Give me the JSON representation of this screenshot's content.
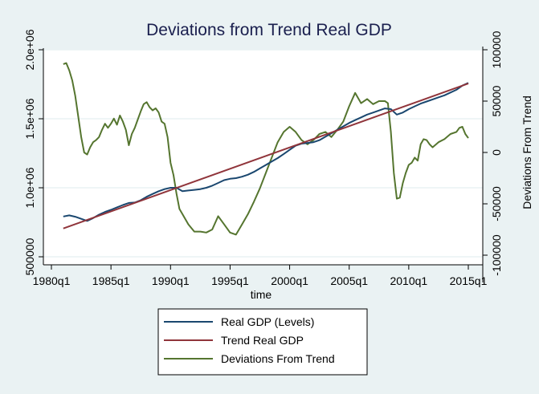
{
  "chart_data": {
    "type": "line",
    "title": "Deviations from Trend Real GDP",
    "xlabel": "time",
    "ylabel_left": "",
    "ylabel_right": "Deviations From Trend",
    "x_ticks": [
      "1980q1",
      "1985q1",
      "1990q1",
      "1995q1",
      "2000q1",
      "2005q1",
      "2010q1",
      "2015q1"
    ],
    "x_tick_values": [
      1980,
      1985,
      1990,
      1995,
      2000,
      2005,
      2010,
      2015
    ],
    "xlim": [
      1979.3,
      2016.2
    ],
    "y_left_ticks": [
      "500000",
      "1.0e+06",
      "1.5e+06",
      "2.0e+06"
    ],
    "y_left_tick_values": [
      500000,
      1000000,
      1500000,
      2000000
    ],
    "ylim_left": [
      450000,
      2000000
    ],
    "y_right_ticks": [
      "-100000",
      "-50000",
      "0",
      "50000",
      "100000"
    ],
    "y_right_tick_values": [
      -100000,
      -50000,
      0,
      50000,
      100000
    ],
    "ylim_right": [
      -110000,
      110000
    ],
    "grid": true,
    "legend_position": "bottom",
    "series": [
      {
        "name": "Real GDP (Levels)",
        "color": "#1a476f",
        "axis": "left",
        "x": [
          1981,
          1981.5,
          1982,
          1982.5,
          1983,
          1983.5,
          1984,
          1984.5,
          1985,
          1985.5,
          1986,
          1986.5,
          1987,
          1987.5,
          1988,
          1988.5,
          1989,
          1989.5,
          1990,
          1990.5,
          1991,
          1991.5,
          1992,
          1992.5,
          1993,
          1993.5,
          1994,
          1994.5,
          1995,
          1995.5,
          1996,
          1996.5,
          1997,
          1997.5,
          1998,
          1998.5,
          1999,
          1999.5,
          2000,
          2000.5,
          2001,
          2001.5,
          2002,
          2002.5,
          2003,
          2003.5,
          2004,
          2004.5,
          2005,
          2005.5,
          2006,
          2006.5,
          2007,
          2007.5,
          2008,
          2008.5,
          2009,
          2009.5,
          2010,
          2010.5,
          2011,
          2011.5,
          2012,
          2012.5,
          2013,
          2013.5,
          2014,
          2014.5,
          2015
        ],
        "y": [
          792000,
          800000,
          790000,
          775000,
          760000,
          780000,
          805000,
          825000,
          840000,
          858000,
          875000,
          890000,
          893000,
          910000,
          935000,
          955000,
          975000,
          990000,
          1000000,
          1000000,
          975000,
          980000,
          985000,
          990000,
          1000000,
          1015000,
          1035000,
          1055000,
          1065000,
          1070000,
          1080000,
          1095000,
          1115000,
          1140000,
          1165000,
          1190000,
          1215000,
          1245000,
          1275000,
          1305000,
          1320000,
          1325000,
          1330000,
          1345000,
          1370000,
          1395000,
          1420000,
          1445000,
          1470000,
          1490000,
          1510000,
          1530000,
          1545000,
          1560000,
          1575000,
          1570000,
          1530000,
          1545000,
          1570000,
          1590000,
          1610000,
          1625000,
          1640000,
          1655000,
          1670000,
          1690000,
          1710000,
          1740000,
          1760000
        ]
      },
      {
        "name": "Trend Real GDP",
        "color": "#90353b",
        "axis": "left",
        "x": [
          1981,
          2015
        ],
        "y": [
          705000,
          1755000
        ]
      },
      {
        "name": "Deviations From Trend",
        "color": "#55752f",
        "axis": "right",
        "x": [
          1981,
          1981.25,
          1981.5,
          1981.75,
          1982,
          1982.25,
          1982.5,
          1982.75,
          1983,
          1983.25,
          1983.5,
          1983.75,
          1984,
          1984.25,
          1984.5,
          1984.75,
          1985,
          1985.25,
          1985.5,
          1985.75,
          1986,
          1986.25,
          1986.5,
          1986.75,
          1987,
          1987.25,
          1987.5,
          1987.75,
          1988,
          1988.25,
          1988.5,
          1988.75,
          1989,
          1989.25,
          1989.5,
          1989.75,
          1990,
          1990.25,
          1990.5,
          1990.75,
          1991,
          1991.5,
          1992,
          1992.5,
          1993,
          1993.5,
          1994,
          1994.5,
          1995,
          1995.5,
          1996,
          1996.5,
          1997,
          1997.5,
          1998,
          1998.5,
          1999,
          1999.5,
          2000,
          2000.5,
          2001,
          2001.5,
          2002,
          2002.5,
          2003,
          2003.5,
          2004,
          2004.5,
          2005,
          2005.5,
          2006,
          2006.5,
          2007,
          2007.5,
          2008,
          2008.25,
          2008.5,
          2008.75,
          2009,
          2009.25,
          2009.5,
          2009.75,
          2010,
          2010.25,
          2010.5,
          2010.75,
          2011,
          2011.25,
          2011.5,
          2011.75,
          2012,
          2012.5,
          2013,
          2013.5,
          2014,
          2014.25,
          2014.5,
          2014.75,
          2015
        ],
        "y": [
          86000,
          87000,
          80000,
          70000,
          55000,
          35000,
          15000,
          0,
          -2000,
          5000,
          10000,
          12000,
          15000,
          22000,
          28000,
          24000,
          28000,
          33000,
          27000,
          36000,
          30000,
          22000,
          7000,
          18000,
          24000,
          32000,
          40000,
          47000,
          49000,
          44000,
          41000,
          43000,
          39000,
          30000,
          28000,
          15000,
          -10000,
          -22000,
          -40000,
          -55000,
          -60000,
          -70000,
          -77000,
          -77000,
          -78000,
          -75000,
          -62000,
          -70000,
          -78000,
          -80000,
          -70000,
          -60000,
          -48000,
          -35000,
          -20000,
          -5000,
          10000,
          20000,
          25000,
          20000,
          12000,
          8000,
          12000,
          18000,
          20000,
          15000,
          22000,
          30000,
          45000,
          58000,
          48000,
          52000,
          47000,
          50000,
          50000,
          48000,
          20000,
          -20000,
          -45000,
          -44000,
          -30000,
          -20000,
          -12000,
          -10000,
          -5000,
          -8000,
          8000,
          13000,
          12000,
          8000,
          5000,
          10000,
          13000,
          18000,
          20000,
          24000,
          25000,
          18000,
          14000
        ]
      }
    ]
  },
  "legend": {
    "items": [
      {
        "label": "Real GDP (Levels)",
        "color": "#1a476f"
      },
      {
        "label": "Trend Real GDP",
        "color": "#90353b"
      },
      {
        "label": "Deviations From Trend",
        "color": "#55752f"
      }
    ]
  },
  "colors": {
    "background": "#eaf2f3",
    "plot_background": "#ffffff",
    "grid": "#eaf2f3",
    "title": "#1a1f4e"
  }
}
